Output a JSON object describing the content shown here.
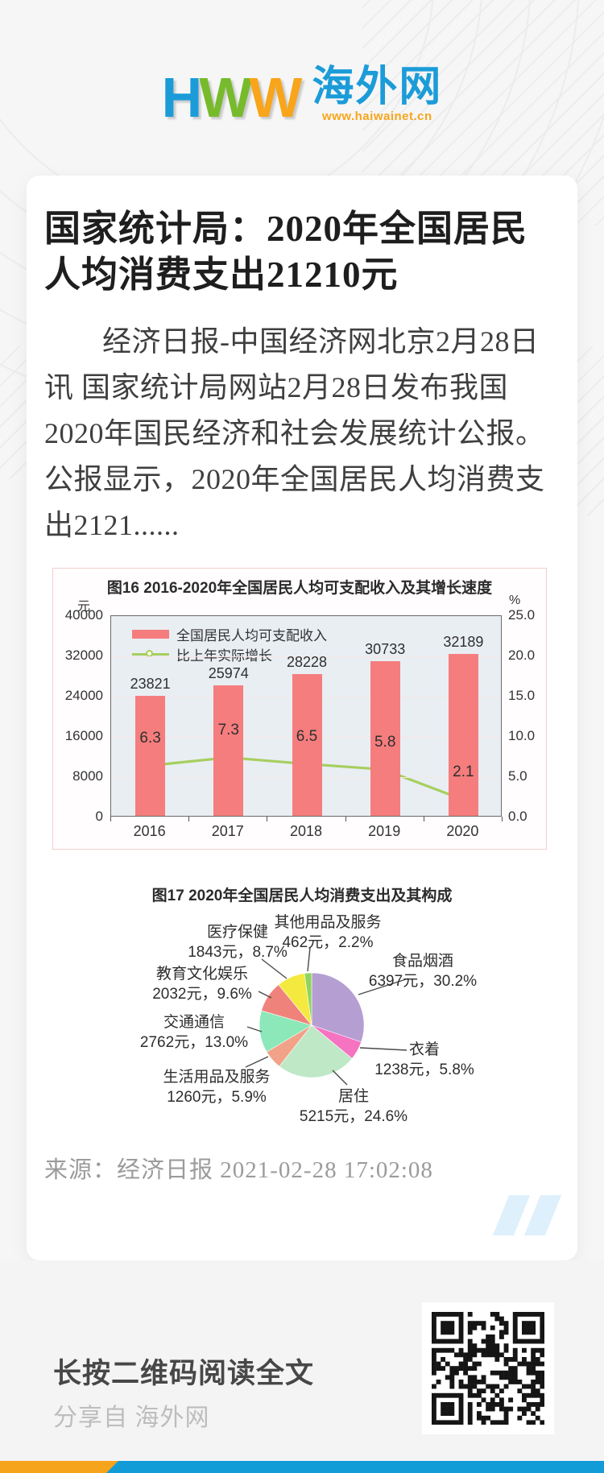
{
  "header": {
    "logo_h": "H",
    "logo_w1": "W",
    "logo_w2": "W",
    "logo_cn": "海外网",
    "logo_url": "www.haiwainet.cn",
    "colors": {
      "blue": "#1b9cd8",
      "green": "#77bb2c",
      "orange": "#f8a51b"
    }
  },
  "article": {
    "title": "国家统计局：2020年全国居民人均消费支出21210元",
    "body": "经济日报-中国经济网北京2月28日讯 国家统计局网站2月28日发布我国2020年国民经济和社会发展统计公报。公报显示，2020年全国居民人均消费支出2121......",
    "source_line": "来源：经济日报  2021-02-28 17:02:08"
  },
  "chart_data": [
    {
      "type": "bar",
      "title": "图16  2016-2020年全国居民人均可支配收入及其增长速度",
      "left_unit": "元",
      "right_unit": "%",
      "categories": [
        "2016",
        "2017",
        "2018",
        "2019",
        "2020"
      ],
      "series": [
        {
          "name": "全国居民人均可支配收入",
          "kind": "bar",
          "values": [
            "23821",
            "25974",
            "28228",
            "30733",
            "32189"
          ],
          "color": "#f57d7d"
        },
        {
          "name": "比上年实际增长",
          "kind": "line",
          "values": [
            "6.3",
            "7.3",
            "6.5",
            "5.8",
            "2.1"
          ],
          "color": "#a6cf5f"
        }
      ],
      "left_ticks": [
        "40000",
        "32000",
        "24000",
        "16000",
        "8000",
        "0"
      ],
      "right_ticks": [
        "25.0",
        "20.0",
        "15.0",
        "10.0",
        "5.0",
        "0.0"
      ],
      "left_max": 40000,
      "right_max": 25,
      "legend_position": "top-left",
      "grid": true,
      "plot_bg": "#e9eef3"
    },
    {
      "type": "pie",
      "title": "图17  2020年全国居民人均消费支出及其构成",
      "label_format": "{name} {value}元，{pct}%",
      "start_angle_deg": 0,
      "clockwise": true,
      "slices": [
        {
          "name": "食品烟酒",
          "value": "6397",
          "pct": "30.2",
          "color": "#b59fd2"
        },
        {
          "name": "衣着",
          "value": "1238",
          "pct": "5.8",
          "color": "#f573c1"
        },
        {
          "name": "居住",
          "value": "5215",
          "pct": "24.6",
          "color": "#bee8c6"
        },
        {
          "name": "生活用品及服务",
          "value": "1260",
          "pct": "5.9",
          "color": "#f2a288"
        },
        {
          "name": "交通通信",
          "value": "2762",
          "pct": "13.0",
          "color": "#8ce8b8"
        },
        {
          "name": "教育文化娱乐",
          "value": "2032",
          "pct": "9.6",
          "color": "#ef837b"
        },
        {
          "name": "医疗保健",
          "value": "1843",
          "pct": "8.7",
          "color": "#f4e93f"
        },
        {
          "name": "其他用品及服务",
          "value": "462",
          "pct": "2.2",
          "color": "#8fd45c"
        }
      ]
    }
  ],
  "footer": {
    "cta": "长按二维码阅读全文",
    "share_from": "分享自 海外网"
  },
  "accent_bar": {
    "orange": "#f7a41d",
    "blue": "#119bd7"
  }
}
